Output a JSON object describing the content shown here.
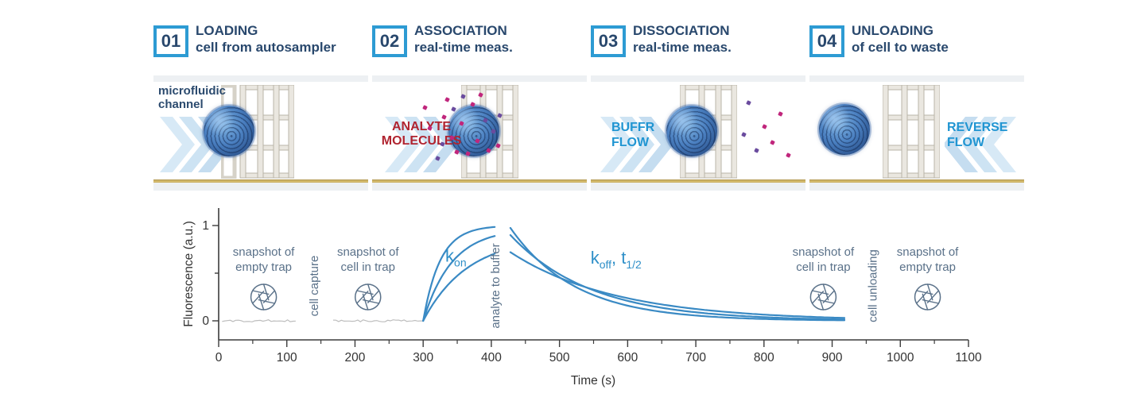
{
  "colors": {
    "accent_blue": "#2d9bd3",
    "navy": "#2b4a6e",
    "red": "#b02430",
    "flow_blue": "#2095d2",
    "curve_blue": "#3a8ac4",
    "slate": "#5a7189",
    "axis": "#3c3c3c",
    "baseline_gray": "#bdbdbd",
    "gold": "#c9ab5e",
    "panel_bg": "#edf0f3",
    "molecule_magenta": "#c0267c",
    "molecule_purple": "#6a4b9e"
  },
  "steps": [
    {
      "number": "01",
      "title": "LOADING",
      "subtitle": "cell from autosampler",
      "scene_label": "microfluidic channel"
    },
    {
      "number": "02",
      "title": "ASSOCIATION",
      "subtitle": "real-time meas.",
      "scene_label": "ANALYTE MOLECULES"
    },
    {
      "number": "03",
      "title": "DISSOCIATION",
      "subtitle": "real-time meas.",
      "scene_label": "BUFFR FLOW"
    },
    {
      "number": "04",
      "title": "UNLOADING",
      "subtitle": "of cell to waste",
      "scene_label": "REVERSE FLOW"
    }
  ],
  "chart_data": {
    "type": "line",
    "title": "",
    "xlabel": "Time (s)",
    "ylabel": "Fluorescence (a.u.)",
    "x_axis": {
      "range": [
        0,
        1100
      ],
      "ticks": [
        0,
        100,
        200,
        300,
        400,
        500,
        600,
        700,
        800,
        900,
        1000,
        1100
      ],
      "minor_step": 50
    },
    "y_axis": {
      "range": [
        0,
        1
      ],
      "ticks": [
        {
          "v": 0,
          "label": "0"
        },
        {
          "v": 0.5,
          "label": ""
        },
        {
          "v": 1,
          "label": "1"
        }
      ]
    },
    "baseline_segments": [
      {
        "t_start": 5,
        "t_end": 115,
        "value": 0
      },
      {
        "t_start": 168,
        "t_end": 300,
        "value": 0
      }
    ],
    "association": {
      "t_start": 300,
      "t_end": 405,
      "series": [
        {
          "amplitude": 1.0,
          "tau": 25
        },
        {
          "amplitude": 0.97,
          "tau": 42
        },
        {
          "amplitude": 0.88,
          "tau": 65
        }
      ]
    },
    "dissociation": {
      "t_start": 428,
      "t_end": 920,
      "series": [
        {
          "v0": 0.975,
          "tau": 95
        },
        {
          "v0": 0.9,
          "tau": 118
        },
        {
          "v0": 0.72,
          "tau": 155
        }
      ]
    },
    "snapshots": [
      {
        "lines": [
          "snapshot of",
          "empty trap"
        ],
        "t": 66
      },
      {
        "lines": [
          "snapshot of",
          "cell in trap"
        ],
        "t": 219
      },
      {
        "lines": [
          "snapshot of",
          "cell in trap"
        ],
        "t": 887
      },
      {
        "lines": [
          "snapshot of",
          "empty trap"
        ],
        "t": 1040
      }
    ],
    "vertical_labels": [
      {
        "text": "cell capture",
        "t": 146
      },
      {
        "text": "analyte to buffer",
        "t": 412
      },
      {
        "text": "cell unloading",
        "t": 965
      }
    ],
    "rate_labels": [
      {
        "t": 348,
        "v": 0.62,
        "parts": [
          {
            "t": "k"
          },
          {
            "t": "on",
            "sub": true
          }
        ]
      },
      {
        "t": 583,
        "v": 0.6,
        "parts": [
          {
            "t": "k"
          },
          {
            "t": "off",
            "sub": true
          },
          {
            "t": ", t"
          },
          {
            "t": "1/2",
            "sub": true
          }
        ]
      }
    ]
  }
}
